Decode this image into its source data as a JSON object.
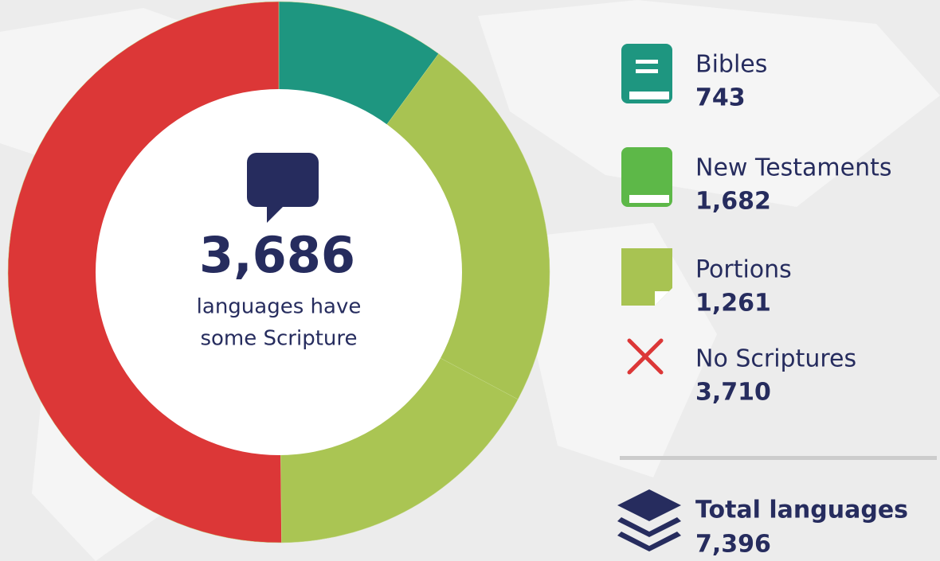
{
  "chart_data": {
    "type": "pie",
    "categories": [
      "Bibles",
      "New Testaments",
      "Portions",
      "No Scriptures"
    ],
    "values": [
      743,
      1682,
      1261,
      3710
    ],
    "value_labels": [
      "743",
      "1,682",
      "1,261",
      "3,710"
    ],
    "colors": [
      "#1e9680",
      "#a8c352",
      "#aac553",
      "#dc3737"
    ],
    "center_title": "3,686",
    "center_text": [
      "languages have",
      "some Scripture"
    ],
    "total_label": "Total languages",
    "total_value": "7,396"
  }
}
